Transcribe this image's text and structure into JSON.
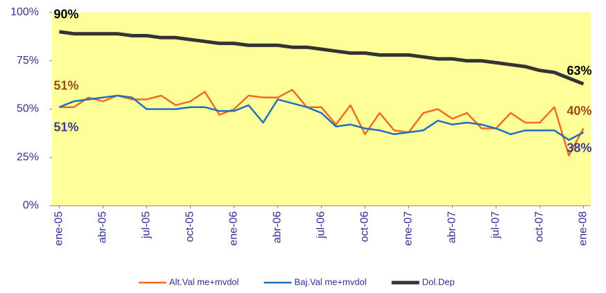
{
  "chart_data": {
    "type": "line",
    "categories": [
      "ene-05",
      null,
      null,
      "abr-05",
      null,
      null,
      "jul-05",
      null,
      null,
      "oct-05",
      null,
      null,
      "ene-06",
      null,
      null,
      "abr-06",
      null,
      null,
      "jul-06",
      null,
      null,
      "oct-06",
      null,
      null,
      "ene-07",
      null,
      null,
      "abr-07",
      null,
      null,
      "jul-07",
      null,
      null,
      "oct-07",
      null,
      null,
      "ene-08"
    ],
    "series": [
      {
        "name": "Alt.Val me+mvdol",
        "color": "#f26b1d",
        "label_color": "#9b4a1a",
        "values": [
          51,
          51,
          56,
          54,
          57,
          55,
          55,
          57,
          52,
          54,
          59,
          47,
          50,
          57,
          56,
          56,
          60,
          51,
          51,
          42,
          52,
          37,
          48,
          39,
          38,
          48,
          50,
          45,
          48,
          40,
          40,
          48,
          43,
          43,
          51,
          26,
          40
        ],
        "value_labels": [
          "51%",
          null,
          null,
          null,
          null,
          null,
          null,
          null,
          null,
          null,
          null,
          null,
          null,
          null,
          null,
          null,
          null,
          null,
          null,
          null,
          null,
          null,
          null,
          null,
          null,
          null,
          null,
          null,
          null,
          null,
          null,
          null,
          null,
          null,
          null,
          null,
          "40%"
        ]
      },
      {
        "name": "Baj.Val me+mvdol",
        "color": "#1e6fc0",
        "label_color": "#3b3b8f",
        "values": [
          51,
          54,
          55,
          56,
          57,
          56,
          50,
          50,
          50,
          51,
          51,
          49,
          49,
          52,
          43,
          55,
          53,
          51,
          48,
          41,
          42,
          40,
          39,
          37,
          38,
          39,
          44,
          42,
          43,
          42,
          40,
          37,
          39,
          39,
          39,
          34,
          38
        ],
        "value_labels": [
          "51%",
          null,
          null,
          null,
          null,
          null,
          null,
          null,
          null,
          null,
          null,
          null,
          null,
          null,
          null,
          null,
          null,
          null,
          null,
          null,
          null,
          null,
          null,
          null,
          null,
          null,
          null,
          null,
          null,
          null,
          null,
          null,
          null,
          null,
          null,
          null,
          "38%"
        ]
      },
      {
        "name": "Dol.Dep",
        "color": "#333333",
        "label_color": "#000000",
        "values": [
          90,
          89,
          89,
          89,
          89,
          88,
          88,
          87,
          87,
          86,
          85,
          84,
          84,
          83,
          83,
          83,
          82,
          82,
          81,
          80,
          79,
          79,
          78,
          78,
          78,
          77,
          76,
          76,
          75,
          75,
          74,
          73,
          72,
          70,
          69,
          66,
          63
        ],
        "value_labels": [
          "90%",
          null,
          null,
          null,
          null,
          null,
          null,
          null,
          null,
          null,
          null,
          null,
          null,
          null,
          null,
          null,
          null,
          null,
          null,
          null,
          null,
          null,
          null,
          null,
          null,
          null,
          null,
          null,
          null,
          null,
          null,
          null,
          null,
          null,
          null,
          null,
          "63%"
        ]
      }
    ],
    "ylim": [
      0,
      100
    ],
    "yticks": [
      {
        "value": 0,
        "label": "0%"
      },
      {
        "value": 25,
        "label": "25%"
      },
      {
        "value": 50,
        "label": "50%"
      },
      {
        "value": 75,
        "label": "75%"
      },
      {
        "value": 100,
        "label": "100%"
      }
    ],
    "plot_background": "#ffff99",
    "legend": "bottom"
  }
}
